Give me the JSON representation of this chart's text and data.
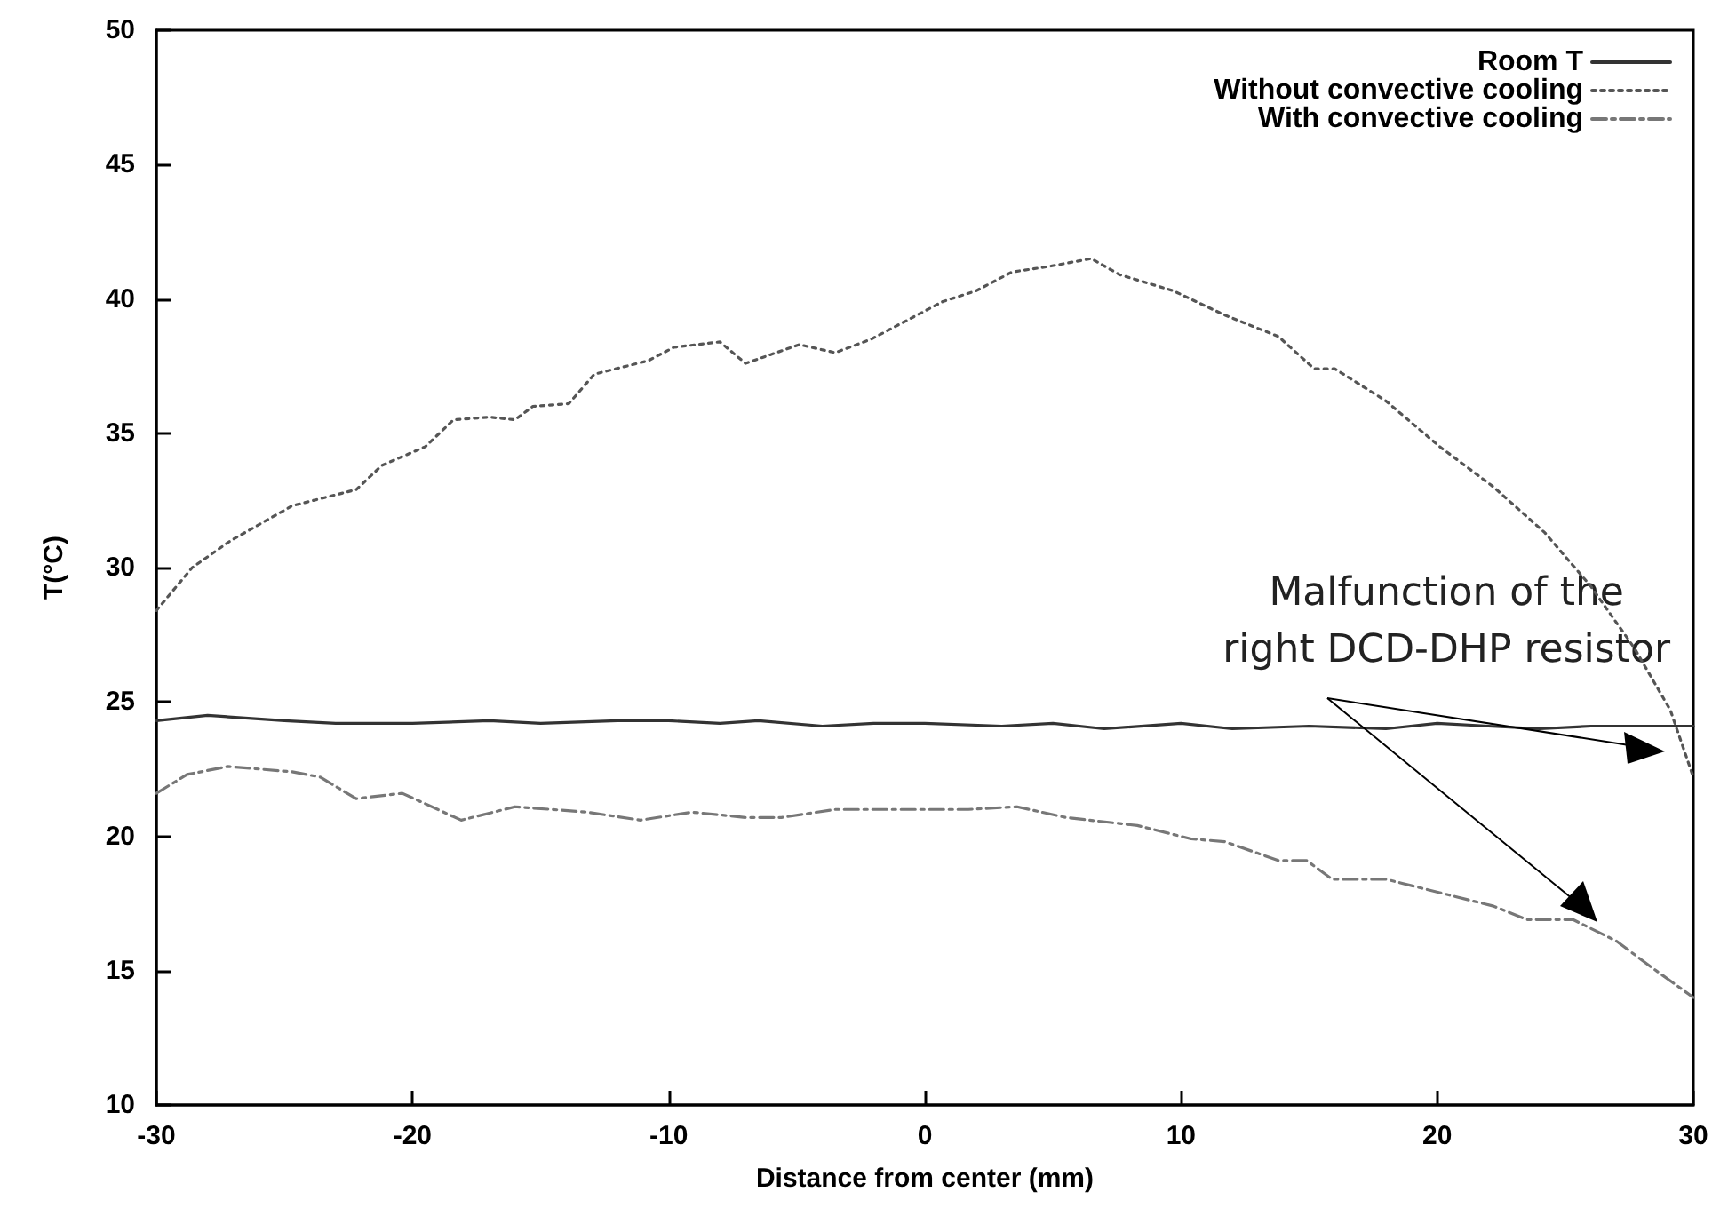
{
  "chart_data": {
    "type": "line",
    "xlabel": "Distance from center (mm)",
    "ylabel": "T(°C)",
    "xlim": [
      -30,
      30
    ],
    "xticks": [
      -30,
      -20,
      -10,
      0,
      10,
      20,
      30
    ],
    "ylim": [
      10,
      50
    ],
    "yticks": [
      10,
      15,
      20,
      25,
      30,
      35,
      40,
      45,
      50
    ],
    "grid": false,
    "legend": "top right",
    "marker": "none",
    "annotations": [
      "Malfunction of the\nright DCD-DHP resistor"
    ],
    "series": [
      {
        "name": "Room T",
        "color": "#333333",
        "line_style": "solid",
        "x": [
          -30,
          -28,
          -25,
          -23,
          -20,
          -17,
          -15,
          -12,
          -10,
          -8,
          -6.5,
          -4,
          -2,
          0,
          3,
          5,
          7,
          10,
          12,
          15,
          18,
          20,
          22,
          24,
          26,
          28,
          30
        ],
        "values": [
          24.3,
          24.5,
          24.3,
          24.2,
          24.2,
          24.3,
          24.2,
          24.3,
          24.3,
          24.2,
          24.3,
          24.1,
          24.2,
          24.2,
          24.1,
          24.2,
          24.0,
          24.2,
          24.0,
          24.1,
          24.0,
          24.2,
          24.1,
          24.0,
          24.1,
          24.1,
          24.1
        ]
      },
      {
        "name": "Without convective cooling",
        "color": "#555555",
        "line_style": "dotted",
        "x": [
          -30,
          -28.6,
          -27.1,
          -24.7,
          -22.2,
          -21.2,
          -19.5,
          -18.4,
          -17,
          -16,
          -15.3,
          -13.9,
          -12.9,
          -10.8,
          -9.8,
          -8,
          -7,
          -4.9,
          -3.5,
          -2.1,
          -0.7,
          0.7,
          2,
          3.4,
          4.8,
          6.5,
          7.6,
          9.7,
          11.7,
          13.8,
          15.2,
          16,
          18,
          20.1,
          22.2,
          24.2,
          26,
          27.7,
          29.1,
          30
        ],
        "values": [
          28.4,
          30.0,
          31.0,
          32.3,
          32.9,
          33.8,
          34.5,
          35.5,
          35.6,
          35.5,
          36.0,
          36.1,
          37.2,
          37.7,
          38.2,
          38.4,
          37.6,
          38.3,
          38.0,
          38.5,
          39.2,
          39.9,
          40.3,
          41.0,
          41.2,
          41.5,
          40.9,
          40.3,
          39.4,
          38.6,
          37.4,
          37.4,
          36.2,
          34.5,
          33.0,
          31.3,
          29.3,
          27.0,
          24.7,
          22.2
        ]
      },
      {
        "name": "With convective cooling",
        "color": "#777777",
        "line_style": "dashed",
        "x": [
          -30,
          -28.8,
          -27.2,
          -24.7,
          -23.6,
          -22.2,
          -20.4,
          -18.1,
          -16,
          -13.2,
          -11.1,
          -9.1,
          -7,
          -5.6,
          -3.5,
          -1.4,
          0,
          1.7,
          3.6,
          5.5,
          8.3,
          10.4,
          11.7,
          13.8,
          14.9,
          15.9,
          18,
          20.1,
          22.2,
          23.5,
          25.3,
          27,
          28.4,
          30
        ],
        "values": [
          21.6,
          22.3,
          22.6,
          22.4,
          22.2,
          21.4,
          21.6,
          20.6,
          21.1,
          20.9,
          20.6,
          20.9,
          20.7,
          20.7,
          21.0,
          21.0,
          21.0,
          21.0,
          21.1,
          20.7,
          20.4,
          19.9,
          19.8,
          19.1,
          19.1,
          18.4,
          18.4,
          17.9,
          17.4,
          16.9,
          16.9,
          16.1,
          15.1,
          14.0
        ]
      }
    ]
  }
}
